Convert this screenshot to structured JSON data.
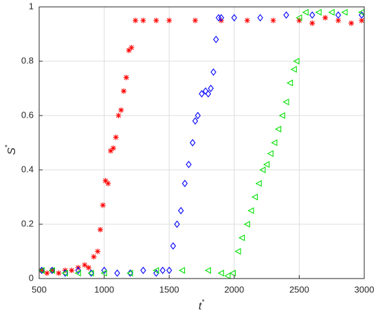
{
  "chart_data": {
    "type": "scatter",
    "xlabel": "t",
    "xlabel_sup": "*",
    "ylabel": "S",
    "ylabel_sup": "*",
    "xlim": [
      500,
      3000
    ],
    "xticks": [
      500,
      1000,
      1500,
      2000,
      2500,
      3000
    ],
    "ylim": [
      0,
      1
    ],
    "yticks": [
      0,
      0.2,
      0.4,
      0.6,
      0.8,
      1
    ],
    "grid": true,
    "series": [
      {
        "color": "#ff0000",
        "marker": "asterisk",
        "x": [
          520,
          560,
          600,
          650,
          700,
          750,
          800,
          850,
          880,
          920,
          950,
          970,
          990,
          1010,
          1030,
          1050,
          1070,
          1090,
          1110,
          1130,
          1150,
          1170,
          1190,
          1210,
          1240,
          1300,
          1400,
          1500,
          1700,
          1900,
          2100,
          2300,
          2500,
          2600,
          2700,
          2800,
          2900,
          2980
        ],
        "values": [
          0.03,
          0.02,
          0.03,
          0.02,
          0.03,
          0.03,
          0.04,
          0.05,
          0.04,
          0.08,
          0.1,
          0.18,
          0.27,
          0.36,
          0.35,
          0.47,
          0.48,
          0.52,
          0.6,
          0.62,
          0.69,
          0.74,
          0.84,
          0.85,
          0.95,
          0.95,
          0.95,
          0.95,
          0.95,
          0.95,
          0.95,
          0.95,
          0.95,
          0.94,
          0.96,
          0.95,
          0.94,
          0.95
        ]
      },
      {
        "color": "#0000ff",
        "marker": "diamond",
        "x": [
          520,
          600,
          700,
          800,
          900,
          1000,
          1100,
          1200,
          1300,
          1400,
          1450,
          1500,
          1530,
          1560,
          1590,
          1620,
          1650,
          1680,
          1700,
          1720,
          1750,
          1780,
          1800,
          1820,
          1840,
          1860,
          1880,
          1900,
          2000,
          2200,
          2400,
          2600,
          2800,
          2980
        ],
        "values": [
          0.03,
          0.03,
          0.02,
          0.03,
          0.02,
          0.03,
          0.02,
          0.02,
          0.03,
          0.02,
          0.03,
          0.03,
          0.12,
          0.2,
          0.25,
          0.35,
          0.42,
          0.5,
          0.58,
          0.6,
          0.68,
          0.69,
          0.68,
          0.7,
          0.76,
          0.88,
          0.96,
          0.96,
          0.96,
          0.96,
          0.97,
          0.97,
          0.97,
          0.97
        ]
      },
      {
        "color": "#00e000",
        "marker": "triangle-left",
        "x": [
          520,
          600,
          700,
          800,
          900,
          1000,
          1200,
          1400,
          1600,
          1800,
          1900,
          1950,
          1990,
          2030,
          2060,
          2100,
          2130,
          2160,
          2190,
          2220,
          2250,
          2280,
          2310,
          2340,
          2370,
          2400,
          2430,
          2460,
          2480,
          2500,
          2550,
          2650,
          2750,
          2850,
          2980
        ],
        "values": [
          0.03,
          0.03,
          0.02,
          0.02,
          0.02,
          0.02,
          0.02,
          0.03,
          0.03,
          0.03,
          0.02,
          0.01,
          0.02,
          0.1,
          0.15,
          0.2,
          0.25,
          0.3,
          0.35,
          0.4,
          0.42,
          0.46,
          0.5,
          0.55,
          0.6,
          0.65,
          0.72,
          0.77,
          0.8,
          0.96,
          0.98,
          0.98,
          0.98,
          0.98,
          0.98
        ]
      }
    ]
  }
}
